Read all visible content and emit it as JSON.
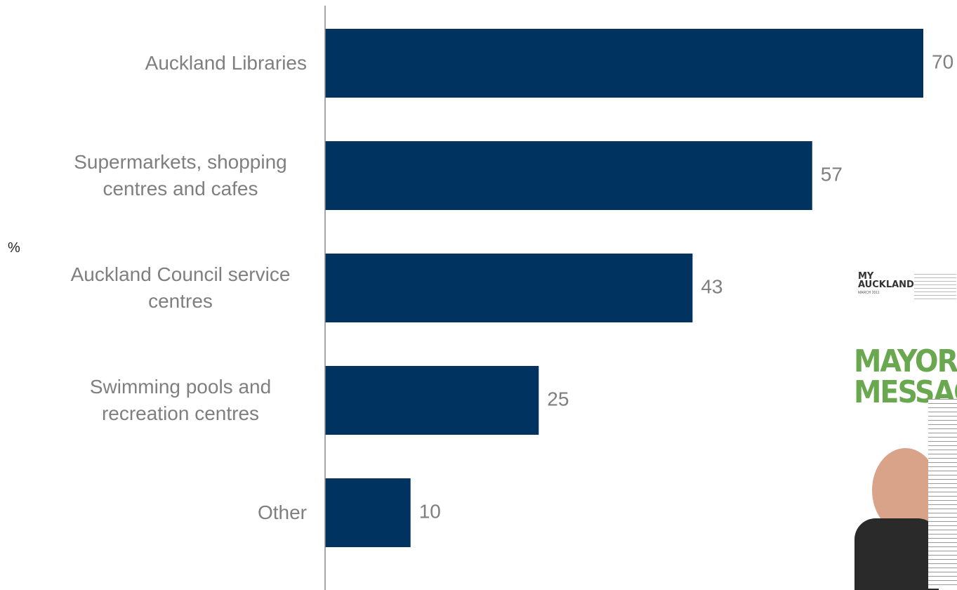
{
  "chart_data": {
    "type": "bar",
    "orientation": "horizontal",
    "axis_label": "%",
    "categories": [
      "Auckland Libraries",
      "Supermarkets, shopping centres and cafes",
      "Auckland Council service centres",
      "Swimming pools and recreation centres",
      "Other"
    ],
    "values": [
      70,
      57,
      43,
      25,
      10
    ],
    "color": "#00335f",
    "xlim": [
      0,
      70
    ]
  },
  "inset": {
    "logo": "MY AUCKLAND",
    "date": "MARCH 2011",
    "headline": "MAYOR'S MESSAGE"
  }
}
